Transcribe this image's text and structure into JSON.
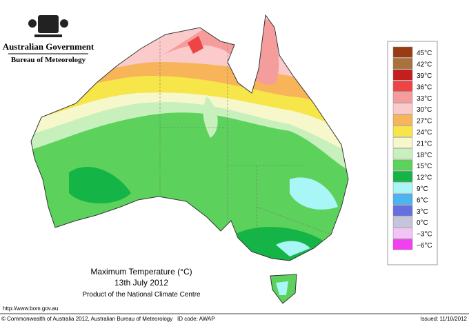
{
  "header": {
    "government": "Australian Government",
    "bureau": "Bureau of Meteorology"
  },
  "legend": [
    {
      "label": "45°C",
      "color": "#9a3c12"
    },
    {
      "label": "42°C",
      "color": "#a8723a"
    },
    {
      "label": "39°C",
      "color": "#c41e1e"
    },
    {
      "label": "36°C",
      "color": "#ee4444"
    },
    {
      "label": "33°C",
      "color": "#f59c9c"
    },
    {
      "label": "30°C",
      "color": "#fbcaca"
    },
    {
      "label": "27°C",
      "color": "#f8b458"
    },
    {
      "label": "24°C",
      "color": "#f6e64a"
    },
    {
      "label": "21°C",
      "color": "#f7f7cc"
    },
    {
      "label": "18°C",
      "color": "#c8f0bc"
    },
    {
      "label": "15°C",
      "color": "#5cd25c"
    },
    {
      "label": "12°C",
      "color": "#14b446"
    },
    {
      "label": "9°C",
      "color": "#a8f6f6"
    },
    {
      "label": "6°C",
      "color": "#4cb4f0"
    },
    {
      "label": "3°C",
      "color": "#6470e0"
    },
    {
      "label": "0°C",
      "color": "#c4c4dc"
    },
    {
      "label": "−3°C",
      "color": "#f0c4f4"
    },
    {
      "label": "−6°C",
      "color": "#f040f0"
    }
  ],
  "map_title": {
    "line1": "Maximum Temperature (°C)",
    "line2": "13th July 2012",
    "line3": "Product of the National Climate Centre"
  },
  "footer": {
    "url": "http://www.bom.gov.au",
    "copyright": "© Commonwealth of Australia 2012, Australian Bureau of Meteorology",
    "id": "ID code: AWAP",
    "issued": "Issued: 11/10/2012"
  }
}
